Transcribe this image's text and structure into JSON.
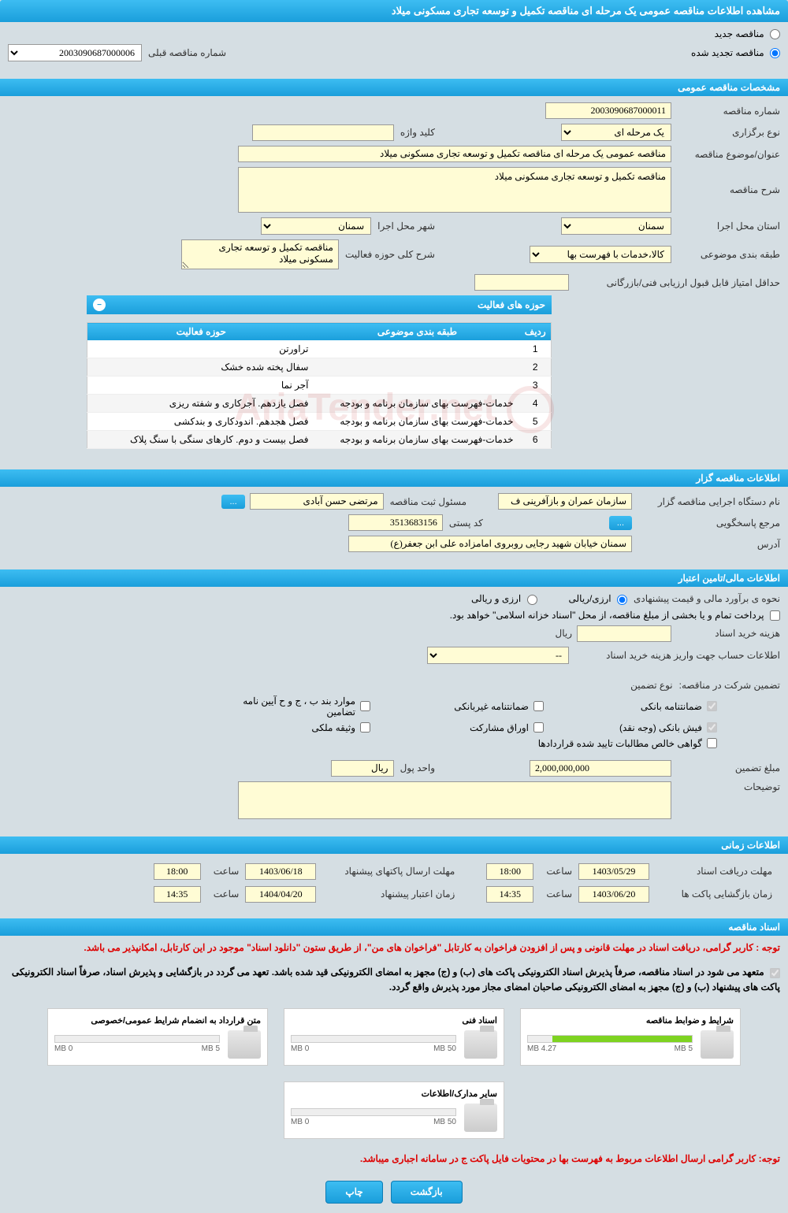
{
  "header": {
    "title": "مشاهده اطلاعات مناقصه عمومی یک مرحله ای مناقصه تکمیل و توسعه تجاری مسکونی میلاد"
  },
  "tender_status": {
    "new_label": "مناقصه جدید",
    "renewed_label": "مناقصه تجدید شده",
    "prev_number_label": "شماره مناقصه قبلی",
    "prev_number_value": "2003090687000006"
  },
  "sections": {
    "general": "مشخصات مناقصه عمومی",
    "organizer": "اطلاعات مناقصه گزار",
    "financial": "اطلاعات مالی/تامین اعتبار",
    "timing": "اطلاعات زمانی",
    "docs": "اسناد مناقصه"
  },
  "general": {
    "number_label": "شماره مناقصه",
    "number_value": "2003090687000011",
    "type_label": "نوع برگزاری",
    "type_value": "یک مرحله ای",
    "keyword_label": "کلید واژه",
    "keyword_value": "",
    "subject_label": "عنوان/موضوع مناقصه",
    "subject_value": "مناقصه عمومی یک مرحله ای مناقصه تکمیل و توسعه تجاری مسکونی میلاد",
    "desc_label": "شرح مناقصه",
    "desc_value": "مناقصه تکمیل و توسعه تجاری مسکونی میلاد",
    "province_label": "استان محل اجرا",
    "province_value": "سمنان",
    "city_label": "شهر محل اجرا",
    "city_value": "سمنان",
    "category_label": "طبقه بندی موضوعی",
    "category_value": "کالا،خدمات با فهرست بها",
    "activity_scope_label": "شرح کلی حوزه فعالیت",
    "activity_scope_value": "مناقصه تکمیل و توسعه تجاری مسکونی میلاد",
    "min_score_label": "حداقل امتیاز قابل قبول ارزیابی فنی/بازرگانی",
    "min_score_value": ""
  },
  "activity_table": {
    "title": "حوزه های فعالیت",
    "columns": {
      "row": "ردیف",
      "category": "طبقه بندی موضوعی",
      "activity": "حوزه فعالیت"
    },
    "rows": [
      {
        "n": "1",
        "cat": "",
        "act": "تراورتن"
      },
      {
        "n": "2",
        "cat": "",
        "act": "سفال پخته شده خشک"
      },
      {
        "n": "3",
        "cat": "",
        "act": "آجر نما"
      },
      {
        "n": "4",
        "cat": "خدمات-فهرست بهای سازمان برنامه و بودجه",
        "act": "فصل یازدهم. آجرکاری و شفته ریزی"
      },
      {
        "n": "5",
        "cat": "خدمات-فهرست بهای سازمان برنامه و بودجه",
        "act": "فصل هجدهم. اندودکاری و بندکشی"
      },
      {
        "n": "6",
        "cat": "خدمات-فهرست بهای سازمان برنامه و بودجه",
        "act": "فصل بیست و دوم. کارهای سنگی با سنگ پلاک"
      }
    ]
  },
  "organizer": {
    "org_label": "نام دستگاه اجرایی مناقصه گزار",
    "org_value": "سازمان عمران و بازآفرینی ف",
    "responsible_label": "مسئول ثبت مناقصه",
    "responsible_value": "مرتضی حسن آبادی",
    "contact_label": "مرجع پاسخگویی",
    "postal_label": "کد پستی",
    "postal_value": "3513683156",
    "address_label": "آدرس",
    "address_value": "سمنان خیابان شهید رجایی روبروی امامزاده علی ابن جعفر(ع)",
    "more_btn": "..."
  },
  "financial": {
    "method_label": "نحوه ی برآورد مالی و قیمت پیشنهادی",
    "option_rial": "ارزی/ریالی",
    "option_both": "ارزی و ریالی",
    "payment_note": "پرداخت تمام و یا بخشی از مبلغ مناقصه، از محل \"اسناد خزانه اسلامی\" خواهد بود.",
    "doc_cost_label": "هزینه خرید اسناد",
    "doc_cost_value": "",
    "currency_rial": "ریال",
    "account_label": "اطلاعات حساب جهت واریز هزینه خرید اسناد",
    "account_value": "--",
    "guarantee_label": "تضمین شرکت در مناقصه:",
    "guarantee_type_label": "نوع تضمین",
    "gt_bank": "ضمانتنامه بانکی",
    "gt_nonbank": "ضمانتنامه غیربانکی",
    "gt_cases": "موارد بند ب ، ج و ح آیین نامه تضامین",
    "gt_cash": "فیش بانکی (وجه نقد)",
    "gt_bonds": "اوراق مشارکت",
    "gt_property": "وثیقه ملکی",
    "gt_cert": "گواهی خالص مطالبات تایید شده قراردادها",
    "amount_label": "مبلغ تضمین",
    "amount_value": "2,000,000,000",
    "unit_label": "واحد پول",
    "unit_value": "ریال",
    "desc_label": "توضیحات",
    "desc_value": ""
  },
  "timing": {
    "receive_label": "مهلت دریافت اسناد",
    "receive_date": "1403/05/29",
    "receive_time_label": "ساعت",
    "receive_time": "18:00",
    "send_label": "مهلت ارسال پاکتهای پیشنهاد",
    "send_date": "1403/06/18",
    "send_time": "18:00",
    "open_label": "زمان بازگشایی پاکت ها",
    "open_date": "1403/06/20",
    "open_time": "14:35",
    "validity_label": "زمان اعتبار پیشنهاد",
    "validity_date": "1404/04/20",
    "validity_time": "14:35"
  },
  "docs": {
    "notice1_prefix": "توجه : ",
    "notice1": "کاربر گرامی، دریافت اسناد در مهلت قانونی و پس از افزودن فراخوان به کارتابل \"فراخوان های من\"، از طریق ستون \"دانلود اسناد\" موجود در این کارتابل، امکانپذیر می باشد.",
    "commit_label": "متعهد می شود در اسناد مناقصه، صرفاً پذیرش اسناد الکترونیکی پاکت های (ب) و (ج) مجهز به امضای الکترونیکی قید شده باشد. تعهد می گردد در بازگشایی و پذیرش اسناد، صرفاً اسناد الکترونیکی پاکت های پیشنهاد (ب) و (ج) مجهز به امضای الکترونیکی صاحبان امضای مجاز مورد پذیرش واقع گردد.",
    "files": [
      {
        "title": "شرایط و ضوابط مناقصه",
        "max": "5 MB",
        "used": "4.27 MB",
        "pct": 85
      },
      {
        "title": "اسناد فنی",
        "max": "50 MB",
        "used": "0 MB",
        "pct": 0
      },
      {
        "title": "متن قرارداد به انضمام شرایط عمومی/خصوصی",
        "max": "5 MB",
        "used": "0 MB",
        "pct": 0
      },
      {
        "title": "سایر مدارک/اطلاعات",
        "max": "50 MB",
        "used": "0 MB",
        "pct": 0
      }
    ],
    "notice2_prefix": "توجه: ",
    "notice2": "کاربر گرامی ارسال اطلاعات مربوط به فهرست بها در محتویات فایل پاکت ج در سامانه اجباری میباشد."
  },
  "buttons": {
    "back": "بازگشت",
    "print": "چاپ"
  },
  "watermark": "AriaTender.net"
}
